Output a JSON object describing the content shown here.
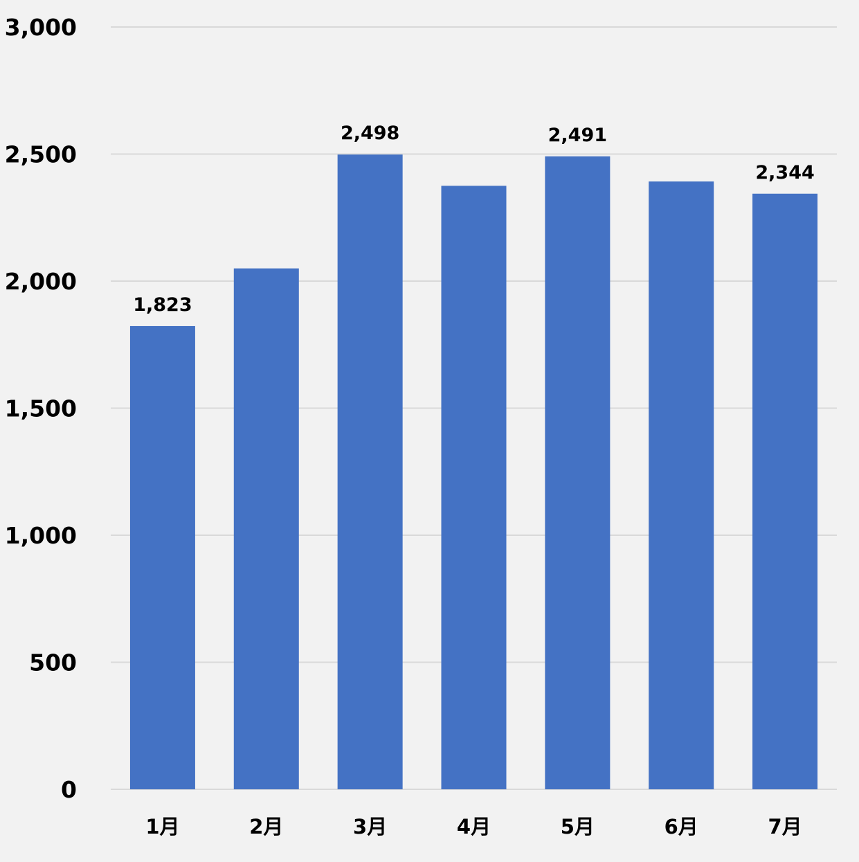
{
  "colors": {
    "background": "#f2f2f2",
    "bar": "#4472c4",
    "gridline": "#d9d9d9",
    "text": "#000000"
  },
  "chart_data": {
    "type": "bar",
    "categories": [
      "1月",
      "2月",
      "3月",
      "4月",
      "5月",
      "6月",
      "7月"
    ],
    "values": [
      1823,
      2050,
      2498,
      2375,
      2491,
      2392,
      2344
    ],
    "data_labels": [
      "1,823",
      "",
      "2,498",
      "",
      "2,491",
      "",
      "2,344"
    ],
    "ylim": [
      0,
      3000
    ],
    "yticks": [
      0,
      500,
      1000,
      1500,
      2000,
      2500,
      3000
    ],
    "ytick_labels": [
      "0",
      "500",
      "1,000",
      "1,500",
      "2,000",
      "2,500",
      "3,000"
    ],
    "title": "",
    "xlabel": "",
    "ylabel": "",
    "grid": true,
    "legend": "none"
  }
}
